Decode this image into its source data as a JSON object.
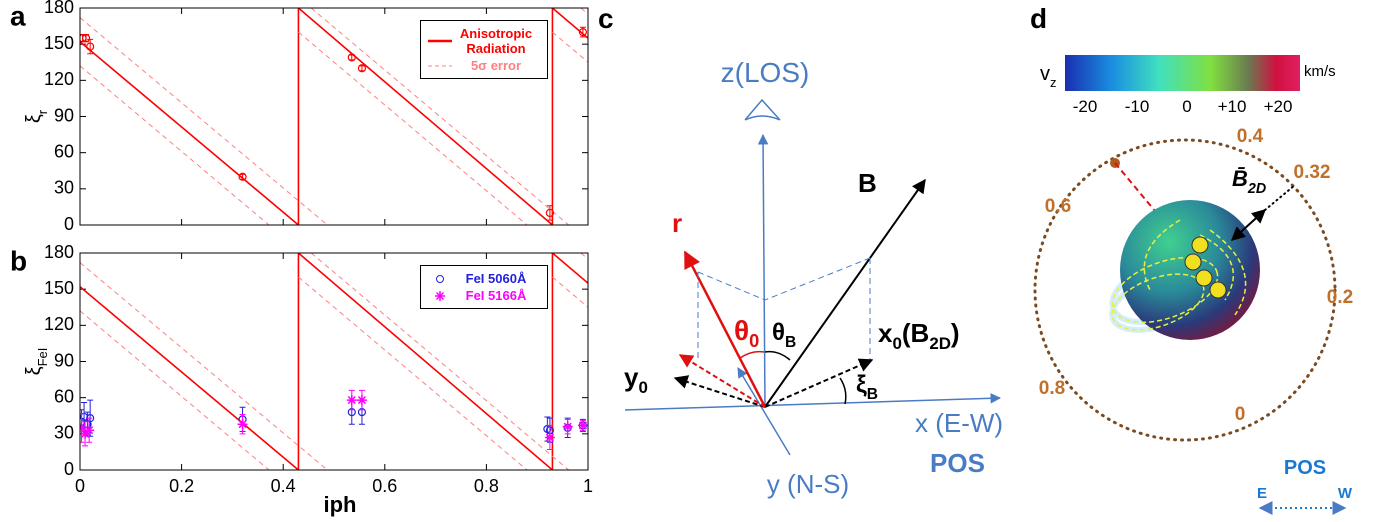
{
  "chart_data": [
    {
      "type": "line",
      "panel": "a",
      "ylabel": [
        "ξ",
        "r"
      ],
      "xlim": [
        0,
        1
      ],
      "ylim": [
        0,
        180
      ],
      "xticks": [
        0,
        0.2,
        0.4,
        0.6,
        0.8,
        1
      ],
      "xtick_labels": false,
      "yticks": [
        0,
        30,
        60,
        90,
        120,
        150,
        180
      ],
      "legend": "upper right",
      "series": [
        {
          "name": "Anisotropic Radiation",
          "color": "#ff0000",
          "style": "solid",
          "x": [
            0,
            0.43,
            0.43,
            0.93,
            0.93,
            1
          ],
          "values": [
            152,
            0,
            180,
            0,
            180,
            155
          ]
        },
        {
          "name": "5σ error",
          "color": "#ff8080",
          "style": "dashed",
          "x": [
            0,
            0.372,
            null,
            0,
            0.487,
            null,
            0.43,
            0.88,
            null,
            0.455,
            0.962,
            null,
            0.93,
            1,
            null,
            0.986,
            1
          ],
          "values": [
            132,
            0,
            null,
            172,
            0,
            null,
            160,
            0,
            null,
            180,
            0,
            null,
            160,
            135,
            null,
            180,
            175
          ]
        },
        {
          "type": "scatter",
          "color": "#ff0000",
          "marker": "o",
          "x": [
            0.005,
            0.012,
            0.02,
            0.32,
            0.535,
            0.555,
            0.925,
            0.99
          ],
          "values": [
            155,
            155,
            148,
            40,
            139,
            130,
            10,
            160
          ],
          "errors": [
            3,
            3,
            6,
            2,
            2,
            2,
            6,
            4
          ]
        }
      ]
    },
    {
      "type": "line",
      "panel": "b",
      "ylabel": [
        "ξ",
        "FeI"
      ],
      "xlabel": "iph",
      "xlim": [
        0,
        1
      ],
      "ylim": [
        0,
        180
      ],
      "xticks": [
        0,
        0.2,
        0.4,
        0.6,
        0.8,
        1
      ],
      "yticks": [
        0,
        30,
        60,
        90,
        120,
        150,
        180
      ],
      "legend": "upper right",
      "series": [
        {
          "color": "#ff0000",
          "style": "solid",
          "x": [
            0,
            0.43,
            0.43,
            0.93,
            0.93,
            1
          ],
          "values": [
            152,
            0,
            180,
            0,
            180,
            155
          ]
        },
        {
          "color": "#ff8080",
          "style": "dashed",
          "x": [
            0,
            0.372,
            null,
            0,
            0.487,
            null,
            0.43,
            0.88,
            null,
            0.455,
            0.962,
            null,
            0.93,
            1,
            null,
            0.986,
            1
          ],
          "values": [
            132,
            0,
            null,
            172,
            0,
            null,
            160,
            0,
            null,
            180,
            0,
            null,
            160,
            135,
            null,
            180,
            175
          ]
        },
        {
          "type": "scatter",
          "name": "FeI 5060Å",
          "color": "#2222dd",
          "marker": "o",
          "x": [
            0.003,
            0.008,
            0.015,
            0.02,
            0.32,
            0.535,
            0.555,
            0.92,
            0.925,
            0.96,
            0.99
          ],
          "values": [
            40,
            44,
            38,
            43,
            42,
            48,
            48,
            34,
            33,
            35,
            37
          ],
          "errors": [
            10,
            12,
            10,
            15,
            10,
            10,
            10,
            10,
            10,
            8,
            5
          ]
        },
        {
          "type": "scatter",
          "name": "FeI 5166Å",
          "color": "#ff00ff",
          "marker": "*",
          "x": [
            0.003,
            0.01,
            0.018,
            0.32,
            0.535,
            0.555,
            0.925,
            0.96,
            0.99
          ],
          "values": [
            35,
            30,
            33,
            38,
            58,
            58,
            27,
            36,
            37
          ],
          "errors": [
            12,
            10,
            10,
            8,
            8,
            8,
            10,
            6,
            4
          ]
        }
      ]
    }
  ],
  "diagram_c": {
    "panel": "c",
    "z_axis": [
      "z(LOS)"
    ],
    "b": [
      "B"
    ],
    "r": [
      "r"
    ],
    "theta0": [
      "θ",
      "0"
    ],
    "thetaB": [
      "θ",
      "B"
    ],
    "x0": [
      "x",
      "0",
      "(B",
      "2D",
      ")"
    ],
    "y0": [
      "y",
      "0"
    ],
    "xiB": [
      "ξ",
      "B"
    ],
    "x_axis": [
      "x (E-W)"
    ],
    "y_axis": [
      "y (N-S)"
    ],
    "pos": [
      "POS"
    ]
  },
  "diagram_d": {
    "panel": "d",
    "vz": [
      "v",
      "z"
    ],
    "unit": [
      "km/s"
    ],
    "colorbar_ticks": [
      "-20",
      "-10",
      "0",
      "+10",
      "+20"
    ],
    "phases": [
      "0.4",
      "0.32",
      "0.6",
      "0.2",
      "0.8",
      "0"
    ],
    "b2d": [
      "B̄",
      "2D"
    ],
    "pos": [
      "POS"
    ],
    "east": [
      "E"
    ],
    "west": [
      "W"
    ]
  }
}
